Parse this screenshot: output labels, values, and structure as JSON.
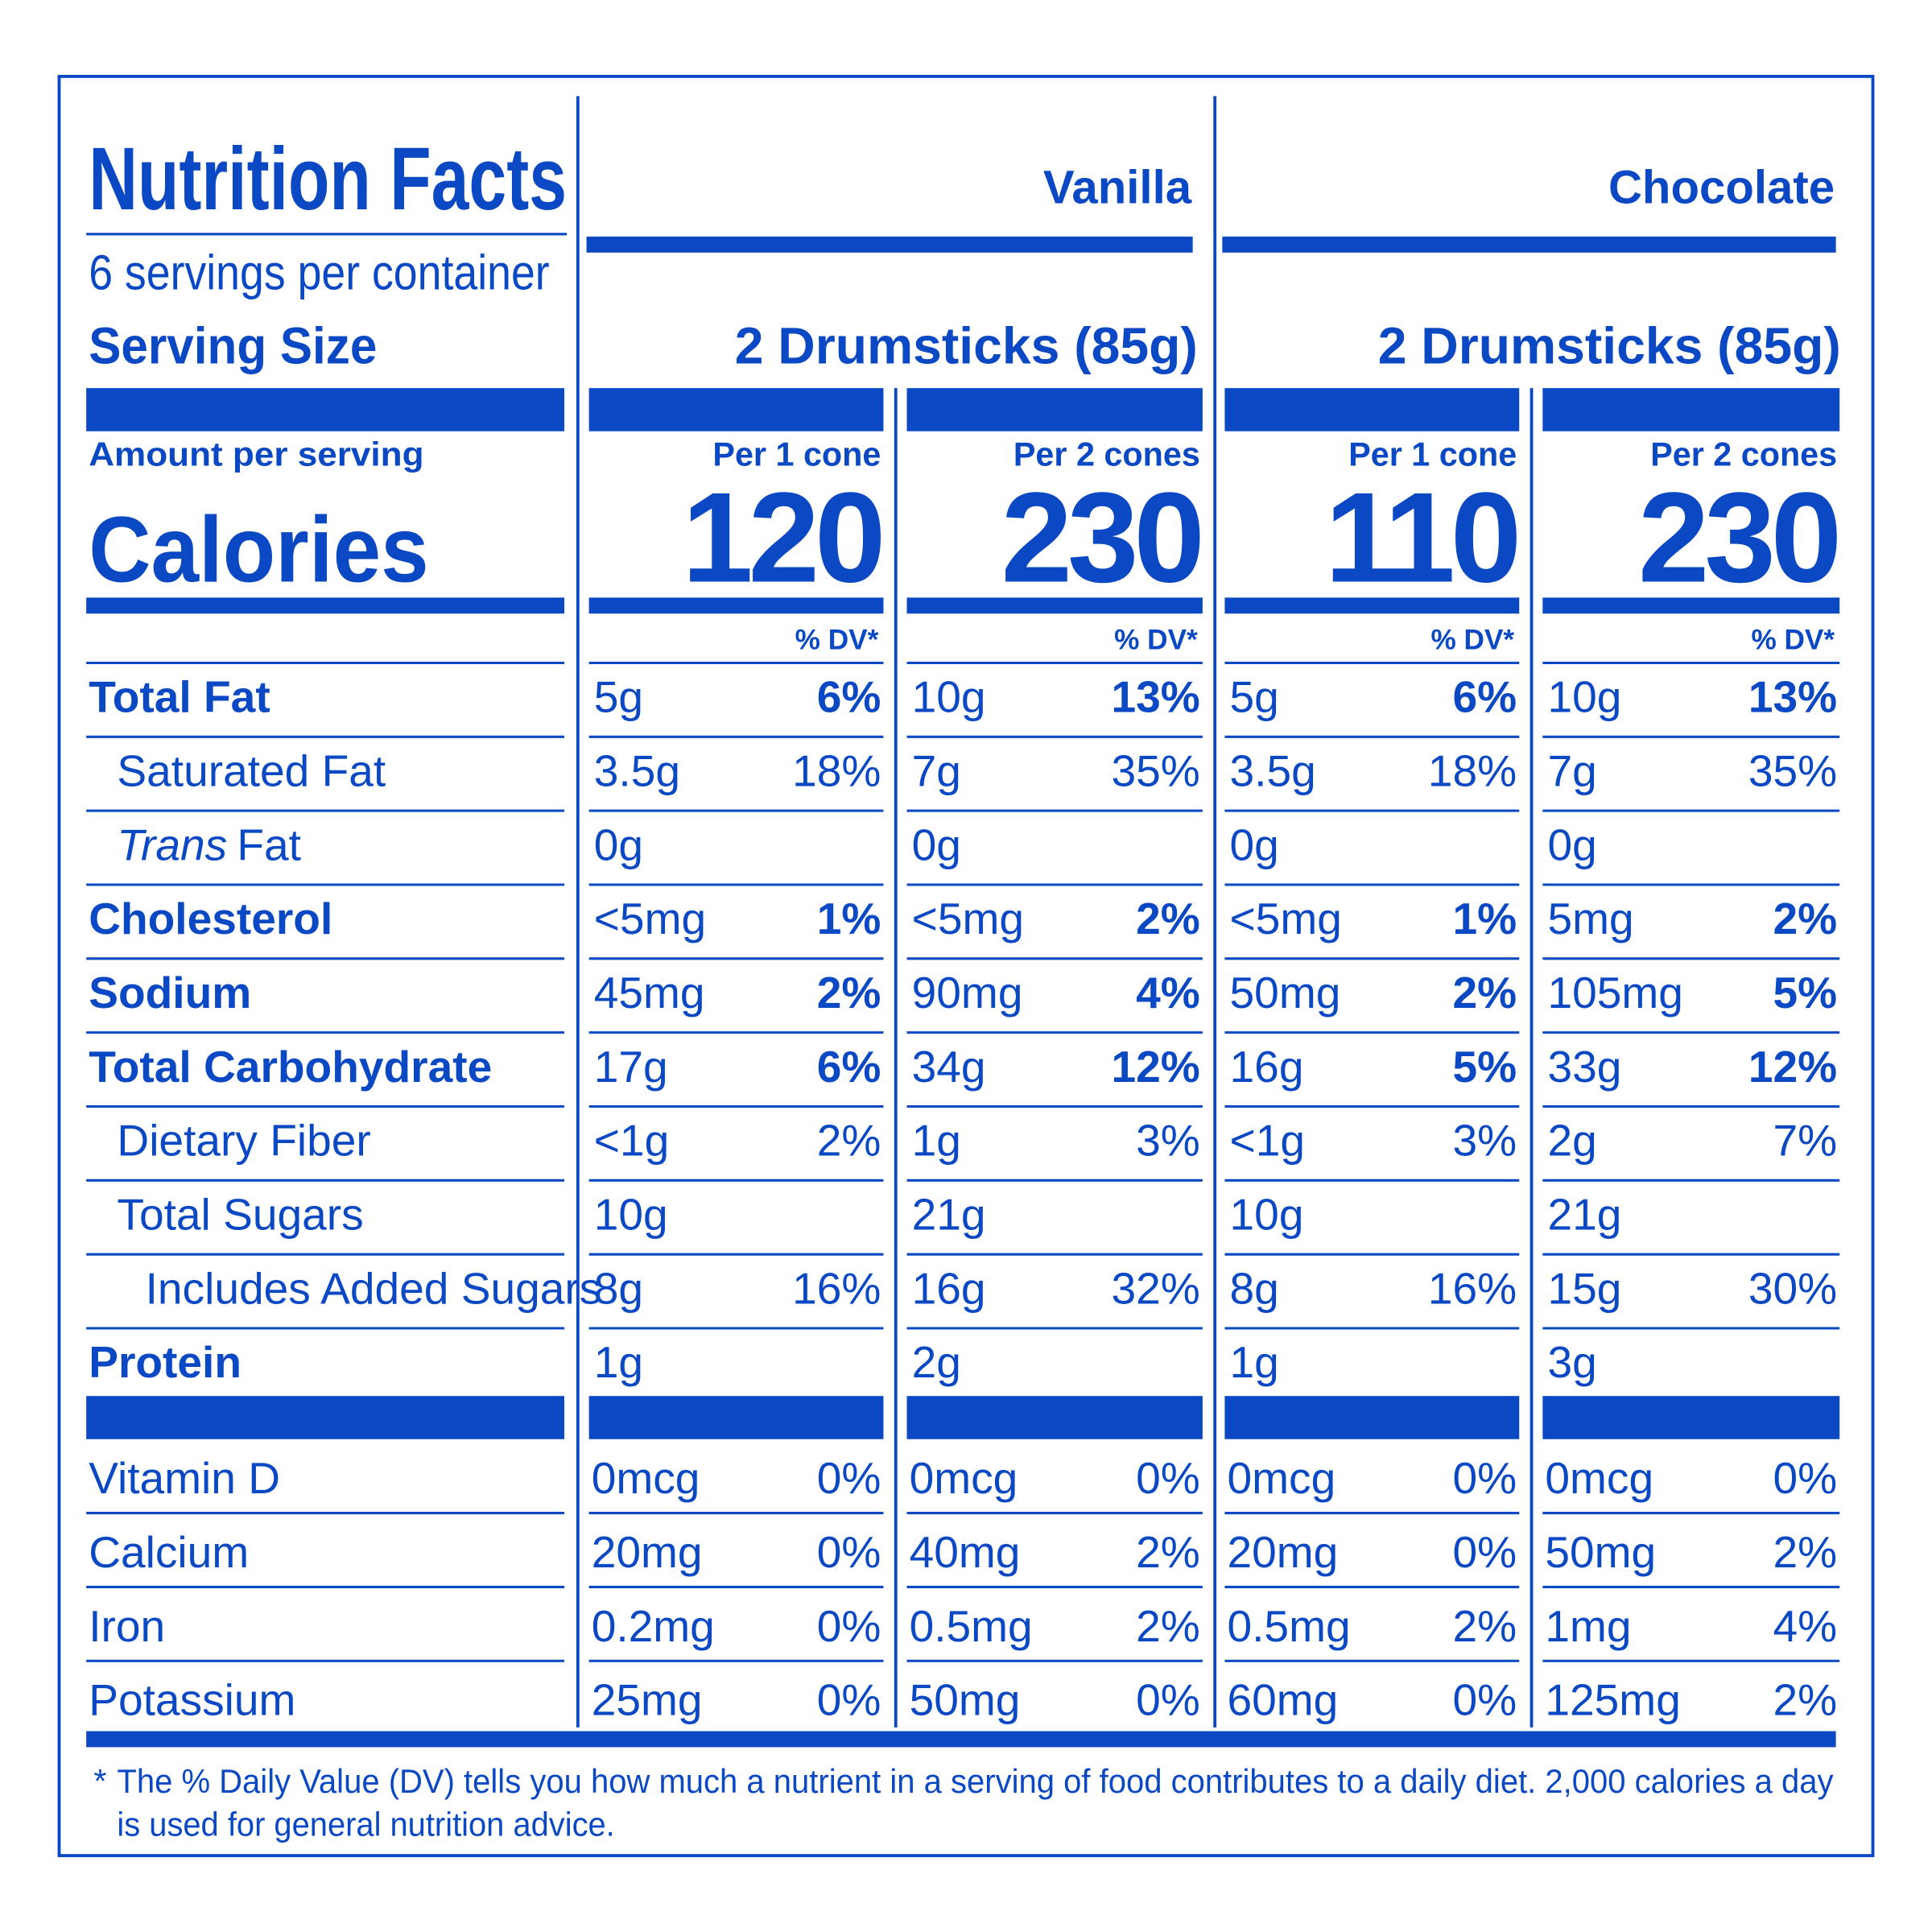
{
  "header": {
    "title": "Nutrition Facts",
    "servings": "6 servings per container",
    "serving_size_label": "Serving Size",
    "amount_per_serving": "Amount per serving",
    "calories_label": "Calories",
    "dv_label": "% DV*"
  },
  "products": [
    {
      "name": "Vanilla",
      "serving_size": "2 Drumsticks (85g)",
      "columns": [
        {
          "label": "Per 1 cone",
          "calories": 120
        },
        {
          "label": "Per 2 cones",
          "calories": 230
        }
      ]
    },
    {
      "name": "Chocolate",
      "serving_size": "2 Drumsticks (85g)",
      "columns": [
        {
          "label": "Per 1 cone",
          "calories": 110
        },
        {
          "label": "Per 2 cones",
          "calories": 230
        }
      ]
    }
  ],
  "nutrients": [
    {
      "name": "Total Fat",
      "bold": true,
      "indent": 0,
      "values": [
        [
          "5g",
          "6%"
        ],
        [
          "10g",
          "13%"
        ],
        [
          "5g",
          "6%"
        ],
        [
          "10g",
          "13%"
        ]
      ]
    },
    {
      "name": "Saturated Fat",
      "bold": false,
      "indent": 1,
      "values": [
        [
          "3.5g",
          "18%"
        ],
        [
          "7g",
          "35%"
        ],
        [
          "3.5g",
          "18%"
        ],
        [
          "7g",
          "35%"
        ]
      ]
    },
    {
      "name_italic": "Trans",
      "name": "Fat",
      "bold": false,
      "indent": 1,
      "values": [
        [
          "0g"
        ],
        [
          "0g"
        ],
        [
          "0g"
        ],
        [
          "0g"
        ]
      ]
    },
    {
      "name": "Cholesterol",
      "bold": true,
      "indent": 0,
      "values": [
        [
          "<5mg",
          "1%"
        ],
        [
          "<5mg",
          "2%"
        ],
        [
          "<5mg",
          "1%"
        ],
        [
          "5mg",
          "2%"
        ]
      ]
    },
    {
      "name": "Sodium",
      "bold": true,
      "indent": 0,
      "values": [
        [
          "45mg",
          "2%"
        ],
        [
          "90mg",
          "4%"
        ],
        [
          "50mg",
          "2%"
        ],
        [
          "105mg",
          "5%"
        ]
      ]
    },
    {
      "name": "Total Carbohydrate",
      "bold": true,
      "indent": 0,
      "values": [
        [
          "17g",
          "6%"
        ],
        [
          "34g",
          "12%"
        ],
        [
          "16g",
          "5%"
        ],
        [
          "33g",
          "12%"
        ]
      ]
    },
    {
      "name": "Dietary Fiber",
      "bold": false,
      "indent": 1,
      "values": [
        [
          "<1g",
          "2%"
        ],
        [
          "1g",
          "3%"
        ],
        [
          "<1g",
          "3%"
        ],
        [
          "2g",
          "7%"
        ]
      ]
    },
    {
      "name": "Total Sugars",
      "bold": false,
      "indent": 1,
      "values": [
        [
          "10g"
        ],
        [
          "21g"
        ],
        [
          "10g"
        ],
        [
          "21g"
        ]
      ]
    },
    {
      "name": "Includes Added Sugars",
      "bold": false,
      "indent": 2,
      "values": [
        [
          "8g",
          "16%"
        ],
        [
          "16g",
          "32%"
        ],
        [
          "8g",
          "16%"
        ],
        [
          "15g",
          "30%"
        ]
      ]
    },
    {
      "name": "Protein",
      "bold": true,
      "indent": 0,
      "values": [
        [
          "1g"
        ],
        [
          "2g"
        ],
        [
          "1g"
        ],
        [
          "3g"
        ]
      ]
    }
  ],
  "vitamins": [
    {
      "name": "Vitamin D",
      "values": [
        [
          "0mcg",
          "0%"
        ],
        [
          "0mcg",
          "0%"
        ],
        [
          "0mcg",
          "0%"
        ],
        [
          "0mcg",
          "0%"
        ]
      ]
    },
    {
      "name": "Calcium",
      "values": [
        [
          "20mg",
          "0%"
        ],
        [
          "40mg",
          "2%"
        ],
        [
          "20mg",
          "0%"
        ],
        [
          "50mg",
          "2%"
        ]
      ]
    },
    {
      "name": "Iron",
      "values": [
        [
          "0.2mg",
          "0%"
        ],
        [
          "0.5mg",
          "2%"
        ],
        [
          "0.5mg",
          "2%"
        ],
        [
          "1mg",
          "4%"
        ]
      ]
    },
    {
      "name": "Potassium",
      "values": [
        [
          "25mg",
          "0%"
        ],
        [
          "50mg",
          "0%"
        ],
        [
          "60mg",
          "0%"
        ],
        [
          "125mg",
          "2%"
        ]
      ]
    }
  ],
  "footnote": {
    "marker": "*",
    "lines": [
      "The % Daily Value (DV) tells you how much a nutrient in a serving of food contributes to a daily diet. 2,000 calories a day",
      "is used for general nutrition advice."
    ]
  }
}
